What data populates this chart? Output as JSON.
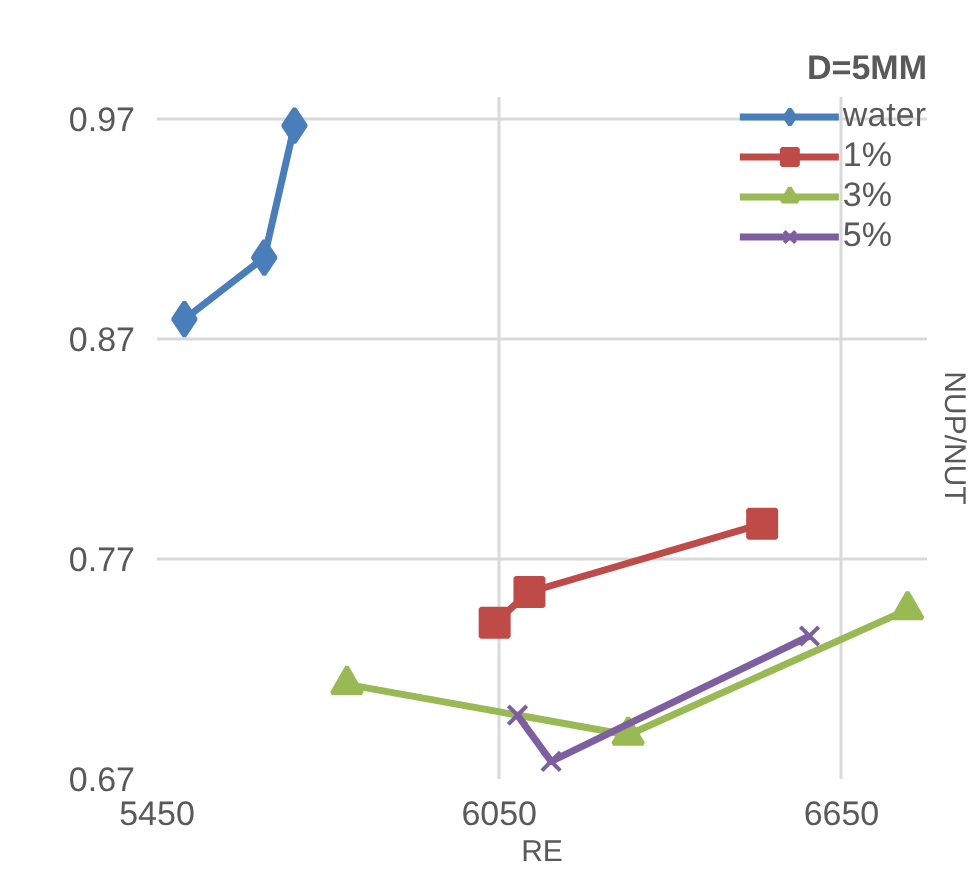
{
  "chart_data": {
    "type": "line",
    "xlabel": "RE",
    "ylabel": "NUP/NUT",
    "annotations": [
      "D=5MM"
    ],
    "xlim": [
      5450,
      6800
    ],
    "xticks": [
      5450,
      6050,
      6650
    ],
    "ylim": [
      0.67,
      0.98
    ],
    "yticks": [
      0.67,
      0.77,
      0.87,
      0.97
    ],
    "grid": true,
    "legend": "top right",
    "series": [
      {
        "name": "water",
        "color": "#4a7ebb",
        "marker": "diamond",
        "x": [
          5498,
          5638,
          5691
        ],
        "values": [
          0.879,
          0.907,
          0.967
        ]
      },
      {
        "name": "1%",
        "color": "#be4b48",
        "marker": "square",
        "x": [
          6042,
          6103,
          6511
        ],
        "values": [
          0.741,
          0.755,
          0.786
        ]
      },
      {
        "name": "3%",
        "color": "#98b954",
        "marker": "triangle",
        "x": [
          5783,
          6276,
          6766
        ],
        "values": [
          0.713,
          0.69,
          0.747
        ]
      },
      {
        "name": "5%",
        "color": "#7d5fa0",
        "marker": "cross",
        "x": [
          6082,
          6141,
          6594
        ],
        "values": [
          0.699,
          0.678,
          0.735
        ]
      }
    ]
  }
}
